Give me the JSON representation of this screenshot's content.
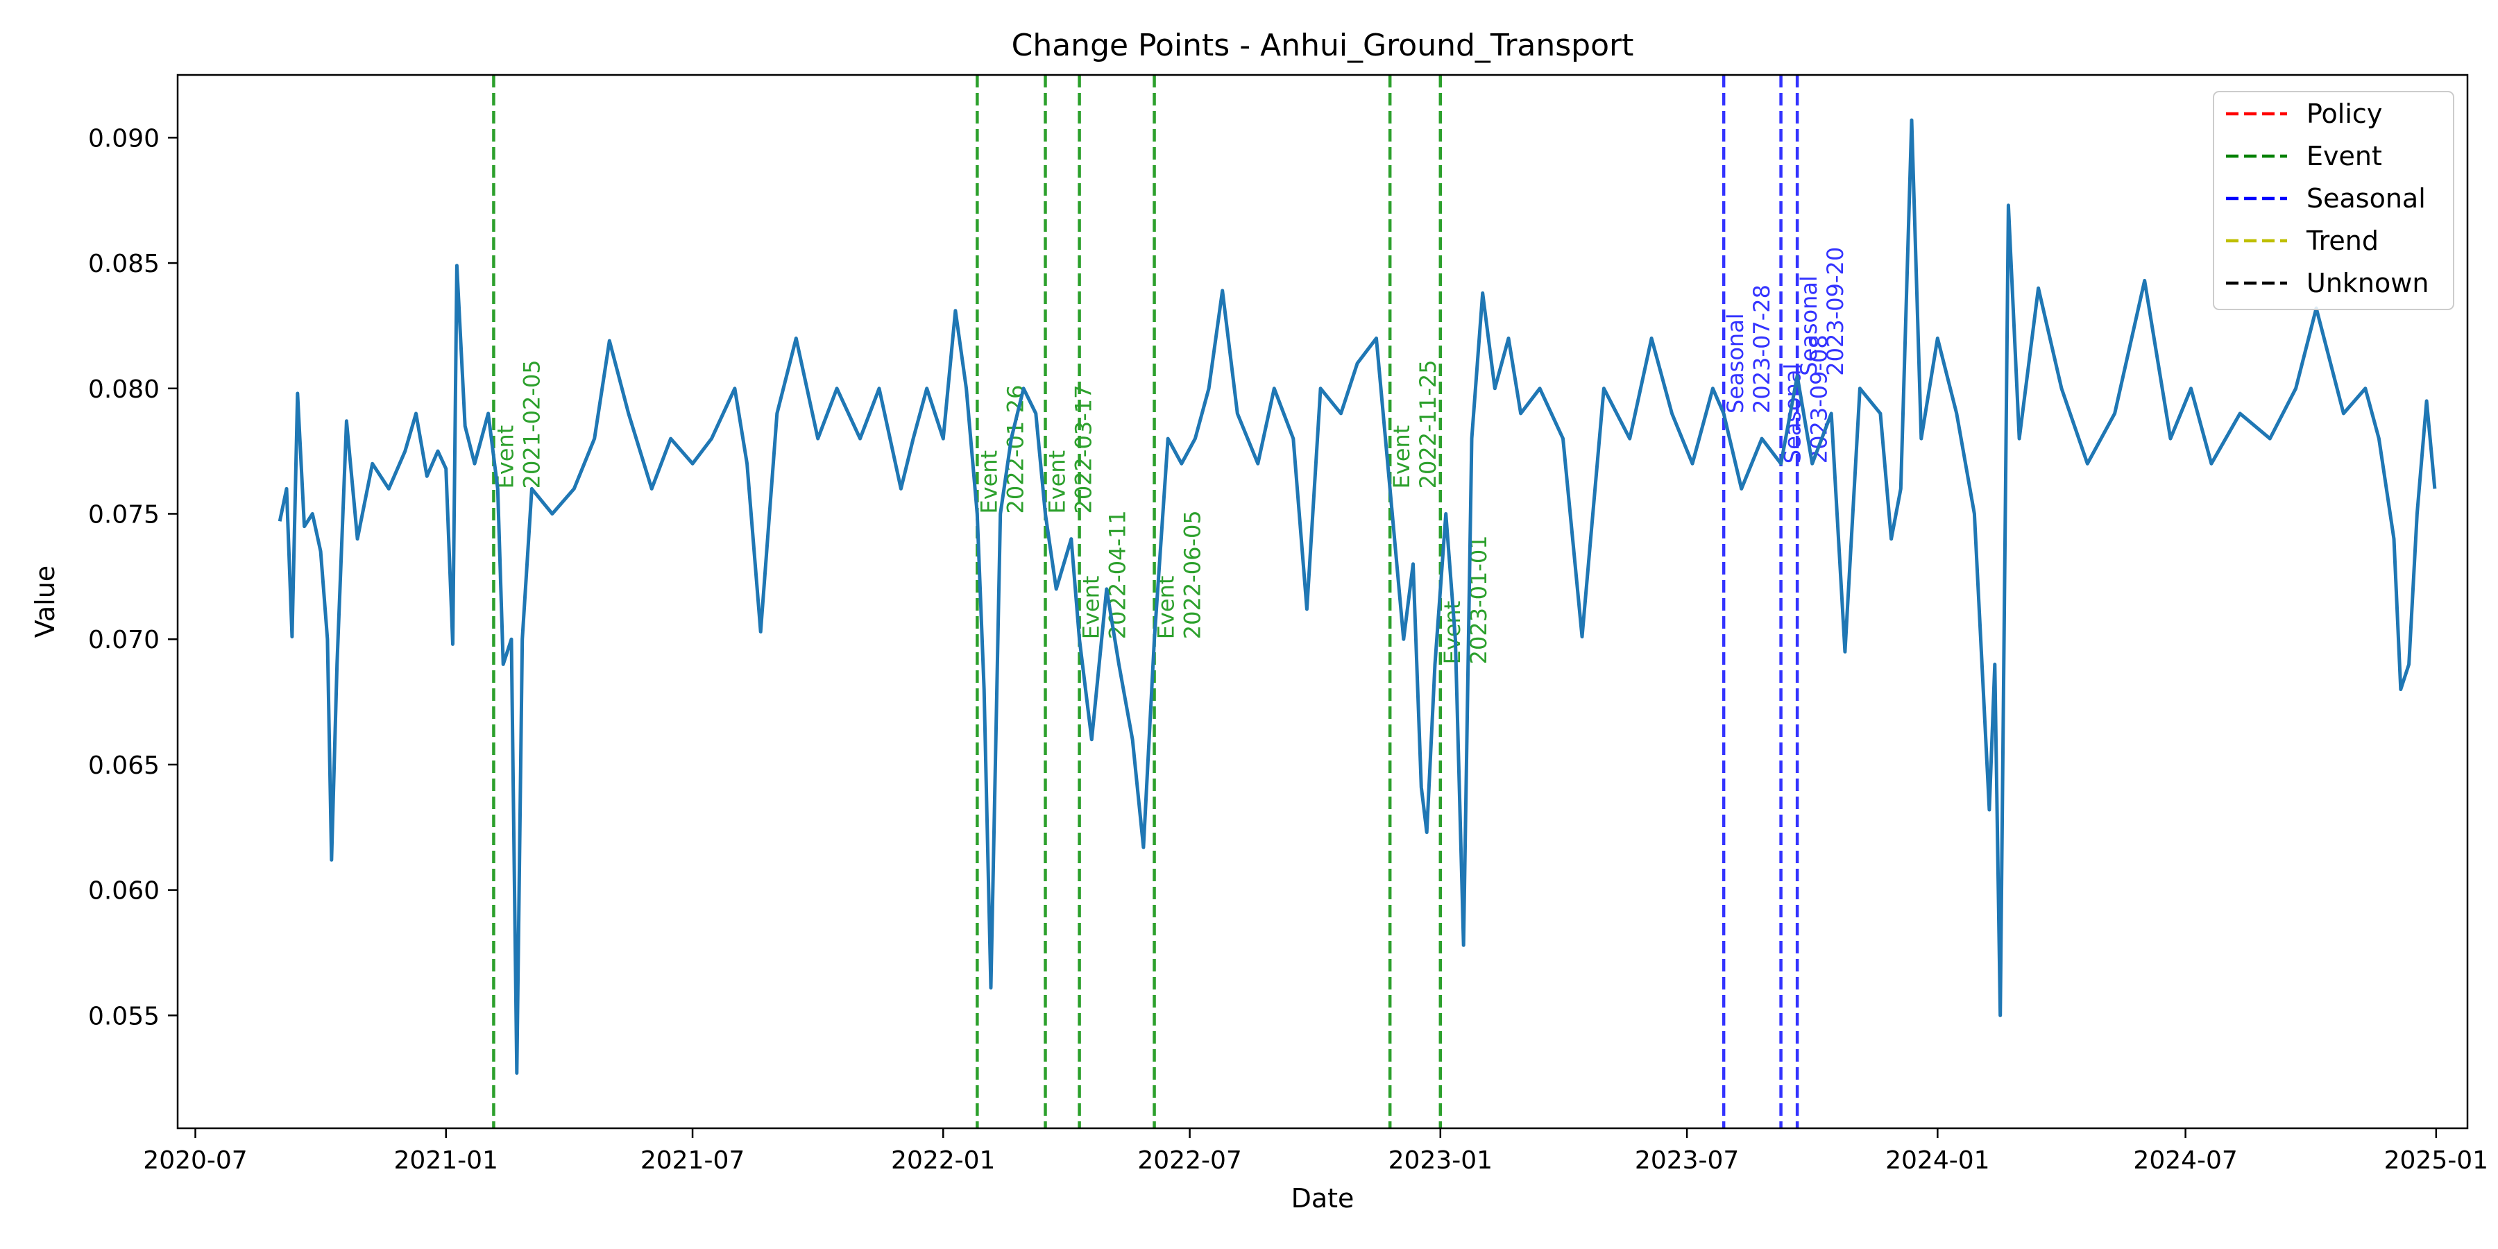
{
  "chart_data": {
    "type": "line",
    "title": "Change Points - Anhui_Ground_Transport",
    "xlabel": "Date",
    "ylabel": "Value",
    "xlim": [
      "2020-06-18",
      "2025-01-24"
    ],
    "ylim": [
      0.0505,
      0.0925
    ],
    "x_ticks": [
      "2020-07",
      "2021-01",
      "2021-07",
      "2022-01",
      "2022-07",
      "2023-01",
      "2023-07",
      "2024-01",
      "2024-07",
      "2025-01"
    ],
    "y_ticks": [
      "0.055",
      "0.060",
      "0.065",
      "0.070",
      "0.075",
      "0.080",
      "0.085",
      "0.090"
    ],
    "legend_position": "top-right",
    "legend": [
      {
        "label": "Policy",
        "color": "#ff0000"
      },
      {
        "label": "Event",
        "color": "#008000"
      },
      {
        "label": "Seasonal",
        "color": "#0000ff"
      },
      {
        "label": "Trend",
        "color": "#bfbf00"
      },
      {
        "label": "Unknown",
        "color": "#000000"
      }
    ],
    "change_points": [
      {
        "date": "2021-02-05",
        "type": "Event",
        "color": "#2ca02c"
      },
      {
        "date": "2022-01-26",
        "type": "Event",
        "color": "#2ca02c"
      },
      {
        "date": "2022-03-17",
        "type": "Event",
        "color": "#2ca02c"
      },
      {
        "date": "2022-04-11",
        "type": "Event",
        "color": "#2ca02c"
      },
      {
        "date": "2022-06-05",
        "type": "Event",
        "color": "#2ca02c"
      },
      {
        "date": "2022-11-25",
        "type": "Event",
        "color": "#2ca02c"
      },
      {
        "date": "2023-01-01",
        "type": "Event",
        "color": "#2ca02c"
      },
      {
        "date": "2023-07-28",
        "type": "Seasonal",
        "color": "#3333ff"
      },
      {
        "date": "2023-09-08",
        "type": "Seasonal",
        "color": "#3333ff"
      },
      {
        "date": "2023-09-20",
        "type": "Seasonal",
        "color": "#3333ff"
      }
    ],
    "series": [
      {
        "color": "#1f77b4",
        "points": [
          [
            "2020-09-01",
            0.0747
          ],
          [
            "2020-09-06",
            0.076
          ],
          [
            "2020-09-10",
            0.0701
          ],
          [
            "2020-09-14",
            0.0798
          ],
          [
            "2020-09-19",
            0.0745
          ],
          [
            "2020-09-25",
            0.075
          ],
          [
            "2020-10-01",
            0.0735
          ],
          [
            "2020-10-06",
            0.07
          ],
          [
            "2020-10-09",
            0.0612
          ],
          [
            "2020-10-13",
            0.069
          ],
          [
            "2020-10-20",
            0.0787
          ],
          [
            "2020-10-28",
            0.074
          ],
          [
            "2020-11-08",
            0.077
          ],
          [
            "2020-11-20",
            0.076
          ],
          [
            "2020-12-02",
            0.0775
          ],
          [
            "2020-12-10",
            0.079
          ],
          [
            "2020-12-18",
            0.0765
          ],
          [
            "2020-12-26",
            0.0775
          ],
          [
            "2021-01-01",
            0.0768
          ],
          [
            "2021-01-06",
            0.0698
          ],
          [
            "2021-01-09",
            0.0849
          ],
          [
            "2021-01-15",
            0.0785
          ],
          [
            "2021-01-22",
            0.077
          ],
          [
            "2021-02-01",
            0.079
          ],
          [
            "2021-02-08",
            0.076
          ],
          [
            "2021-02-12",
            0.069
          ],
          [
            "2021-02-18",
            0.07
          ],
          [
            "2021-02-22",
            0.0527
          ],
          [
            "2021-02-26",
            0.07
          ],
          [
            "2021-03-05",
            0.076
          ],
          [
            "2021-03-20",
            0.075
          ],
          [
            "2021-04-05",
            0.076
          ],
          [
            "2021-04-20",
            0.078
          ],
          [
            "2021-05-01",
            0.0819
          ],
          [
            "2021-05-15",
            0.079
          ],
          [
            "2021-06-01",
            0.076
          ],
          [
            "2021-06-15",
            0.078
          ],
          [
            "2021-07-01",
            0.077
          ],
          [
            "2021-07-15",
            0.078
          ],
          [
            "2021-08-01",
            0.08
          ],
          [
            "2021-08-10",
            0.077
          ],
          [
            "2021-08-20",
            0.0703
          ],
          [
            "2021-09-01",
            0.079
          ],
          [
            "2021-09-15",
            0.082
          ],
          [
            "2021-10-01",
            0.078
          ],
          [
            "2021-10-15",
            0.08
          ],
          [
            "2021-11-01",
            0.078
          ],
          [
            "2021-11-15",
            0.08
          ],
          [
            "2021-12-01",
            0.076
          ],
          [
            "2021-12-10",
            0.078
          ],
          [
            "2021-12-20",
            0.08
          ],
          [
            "2022-01-01",
            0.078
          ],
          [
            "2022-01-10",
            0.0831
          ],
          [
            "2022-01-18",
            0.08
          ],
          [
            "2022-01-26",
            0.075
          ],
          [
            "2022-01-31",
            0.068
          ],
          [
            "2022-02-05",
            0.0561
          ],
          [
            "2022-02-12",
            0.075
          ],
          [
            "2022-02-20",
            0.078
          ],
          [
            "2022-03-01",
            0.08
          ],
          [
            "2022-03-10",
            0.079
          ],
          [
            "2022-03-17",
            0.075
          ],
          [
            "2022-03-25",
            0.072
          ],
          [
            "2022-04-05",
            0.074
          ],
          [
            "2022-04-11",
            0.07
          ],
          [
            "2022-04-20",
            0.066
          ],
          [
            "2022-05-01",
            0.072
          ],
          [
            "2022-05-10",
            0.069
          ],
          [
            "2022-05-20",
            0.066
          ],
          [
            "2022-05-28",
            0.0617
          ],
          [
            "2022-06-05",
            0.07
          ],
          [
            "2022-06-15",
            0.078
          ],
          [
            "2022-06-25",
            0.077
          ],
          [
            "2022-07-05",
            0.078
          ],
          [
            "2022-07-15",
            0.08
          ],
          [
            "2022-07-25",
            0.0839
          ],
          [
            "2022-08-05",
            0.079
          ],
          [
            "2022-08-20",
            0.077
          ],
          [
            "2022-09-01",
            0.08
          ],
          [
            "2022-09-15",
            0.078
          ],
          [
            "2022-09-25",
            0.0712
          ],
          [
            "2022-10-05",
            0.08
          ],
          [
            "2022-10-20",
            0.079
          ],
          [
            "2022-11-01",
            0.081
          ],
          [
            "2022-11-15",
            0.082
          ],
          [
            "2022-11-25",
            0.076
          ],
          [
            "2022-12-05",
            0.07
          ],
          [
            "2022-12-12",
            0.073
          ],
          [
            "2022-12-18",
            0.0641
          ],
          [
            "2022-12-22",
            0.0623
          ],
          [
            "2022-12-28",
            0.069
          ],
          [
            "2023-01-05",
            0.075
          ],
          [
            "2023-01-12",
            0.07
          ],
          [
            "2023-01-18",
            0.0578
          ],
          [
            "2023-01-24",
            0.078
          ],
          [
            "2023-02-01",
            0.0838
          ],
          [
            "2023-02-10",
            0.08
          ],
          [
            "2023-02-20",
            0.082
          ],
          [
            "2023-03-01",
            0.079
          ],
          [
            "2023-03-15",
            0.08
          ],
          [
            "2023-04-01",
            0.078
          ],
          [
            "2023-04-15",
            0.0701
          ],
          [
            "2023-05-01",
            0.08
          ],
          [
            "2023-05-20",
            0.078
          ],
          [
            "2023-06-05",
            0.082
          ],
          [
            "2023-06-20",
            0.079
          ],
          [
            "2023-07-05",
            0.077
          ],
          [
            "2023-07-20",
            0.08
          ],
          [
            "2023-07-28",
            0.079
          ],
          [
            "2023-08-10",
            0.076
          ],
          [
            "2023-08-25",
            0.078
          ],
          [
            "2023-09-08",
            0.077
          ],
          [
            "2023-09-20",
            0.0805
          ],
          [
            "2023-10-01",
            0.077
          ],
          [
            "2023-10-15",
            0.079
          ],
          [
            "2023-10-25",
            0.0695
          ],
          [
            "2023-11-05",
            0.08
          ],
          [
            "2023-11-20",
            0.079
          ],
          [
            "2023-11-28",
            0.074
          ],
          [
            "2023-12-05",
            0.076
          ],
          [
            "2023-12-13",
            0.0907
          ],
          [
            "2023-12-20",
            0.078
          ],
          [
            "2024-01-01",
            0.082
          ],
          [
            "2024-01-15",
            0.079
          ],
          [
            "2024-01-28",
            0.075
          ],
          [
            "2024-02-08",
            0.0632
          ],
          [
            "2024-02-12",
            0.069
          ],
          [
            "2024-02-16",
            0.055
          ],
          [
            "2024-02-22",
            0.0873
          ],
          [
            "2024-03-01",
            0.078
          ],
          [
            "2024-03-15",
            0.084
          ],
          [
            "2024-04-01",
            0.08
          ],
          [
            "2024-04-20",
            0.077
          ],
          [
            "2024-05-10",
            0.079
          ],
          [
            "2024-06-01",
            0.0843
          ],
          [
            "2024-06-20",
            0.078
          ],
          [
            "2024-07-05",
            0.08
          ],
          [
            "2024-07-20",
            0.077
          ],
          [
            "2024-08-10",
            0.079
          ],
          [
            "2024-09-01",
            0.078
          ],
          [
            "2024-09-20",
            0.08
          ],
          [
            "2024-10-05",
            0.0832
          ],
          [
            "2024-10-25",
            0.079
          ],
          [
            "2024-11-10",
            0.08
          ],
          [
            "2024-11-20",
            0.078
          ],
          [
            "2024-12-01",
            0.074
          ],
          [
            "2024-12-06",
            0.068
          ],
          [
            "2024-12-12",
            0.069
          ],
          [
            "2024-12-18",
            0.075
          ],
          [
            "2024-12-25",
            0.0795
          ],
          [
            "2024-12-31",
            0.076
          ]
        ]
      }
    ]
  }
}
